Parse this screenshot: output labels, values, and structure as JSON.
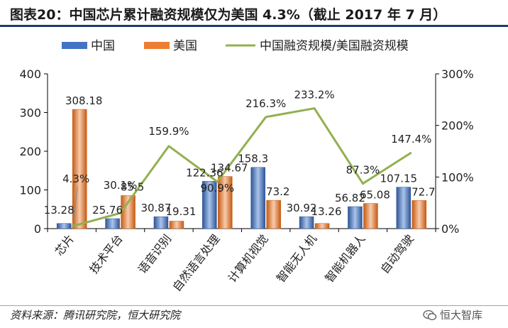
{
  "title": "图表20：中国芯片累计融资规模仅为美国 4.3%（截止 2017 年 7 月）",
  "source": "资料来源：腾讯研究院，恒大研究院",
  "watermark": "恒大智库",
  "watermark_icon": "wechat-icon",
  "colors": {
    "china": "#4472c4",
    "usa": "#ed7d31",
    "ratio": "#92b050",
    "axis": "#000000"
  },
  "chart_data": {
    "type": "bar",
    "categories": [
      "芯片",
      "技术平台",
      "语音识别",
      "自然语言处理",
      "计算机视觉",
      "智能无人机",
      "智能机器人",
      "自动驾驶"
    ],
    "series": [
      {
        "name": "中国",
        "type": "bar",
        "axis": "left",
        "values": [
          13.28,
          25.76,
          30.87,
          122.36,
          158.3,
          30.92,
          56.82,
          107.15
        ],
        "labels": [
          "13.28",
          "25.76",
          "30.87",
          "122.36",
          "158.3",
          "30.92",
          "56.82",
          "107.15"
        ]
      },
      {
        "name": "美国",
        "type": "bar",
        "axis": "left",
        "values": [
          308.18,
          85.5,
          19.31,
          134.67,
          73.2,
          13.26,
          65.08,
          72.7
        ],
        "labels": [
          "308.18",
          "85.5",
          "19.31",
          "134.67",
          "73.2",
          "13.26",
          "65.08",
          "72.7"
        ]
      },
      {
        "name": "中国融资规模/美国融资规模",
        "type": "line",
        "axis": "right",
        "values": [
          4.3,
          30.1,
          159.9,
          90.9,
          216.3,
          233.2,
          87.3,
          147.4
        ],
        "labels": [
          "4.3%",
          "30.1%",
          "159.9%",
          "90.9%",
          "216.3%",
          "233.2%",
          "87.3%",
          "147.4%"
        ]
      }
    ],
    "ylim": [
      0,
      400
    ],
    "yticks": [
      "0",
      "100",
      "200",
      "300",
      "400"
    ],
    "y2lim": [
      0,
      300
    ],
    "y2ticks": [
      "0%",
      "100%",
      "200%",
      "300%"
    ],
    "legend_position": "top",
    "grid": false
  }
}
